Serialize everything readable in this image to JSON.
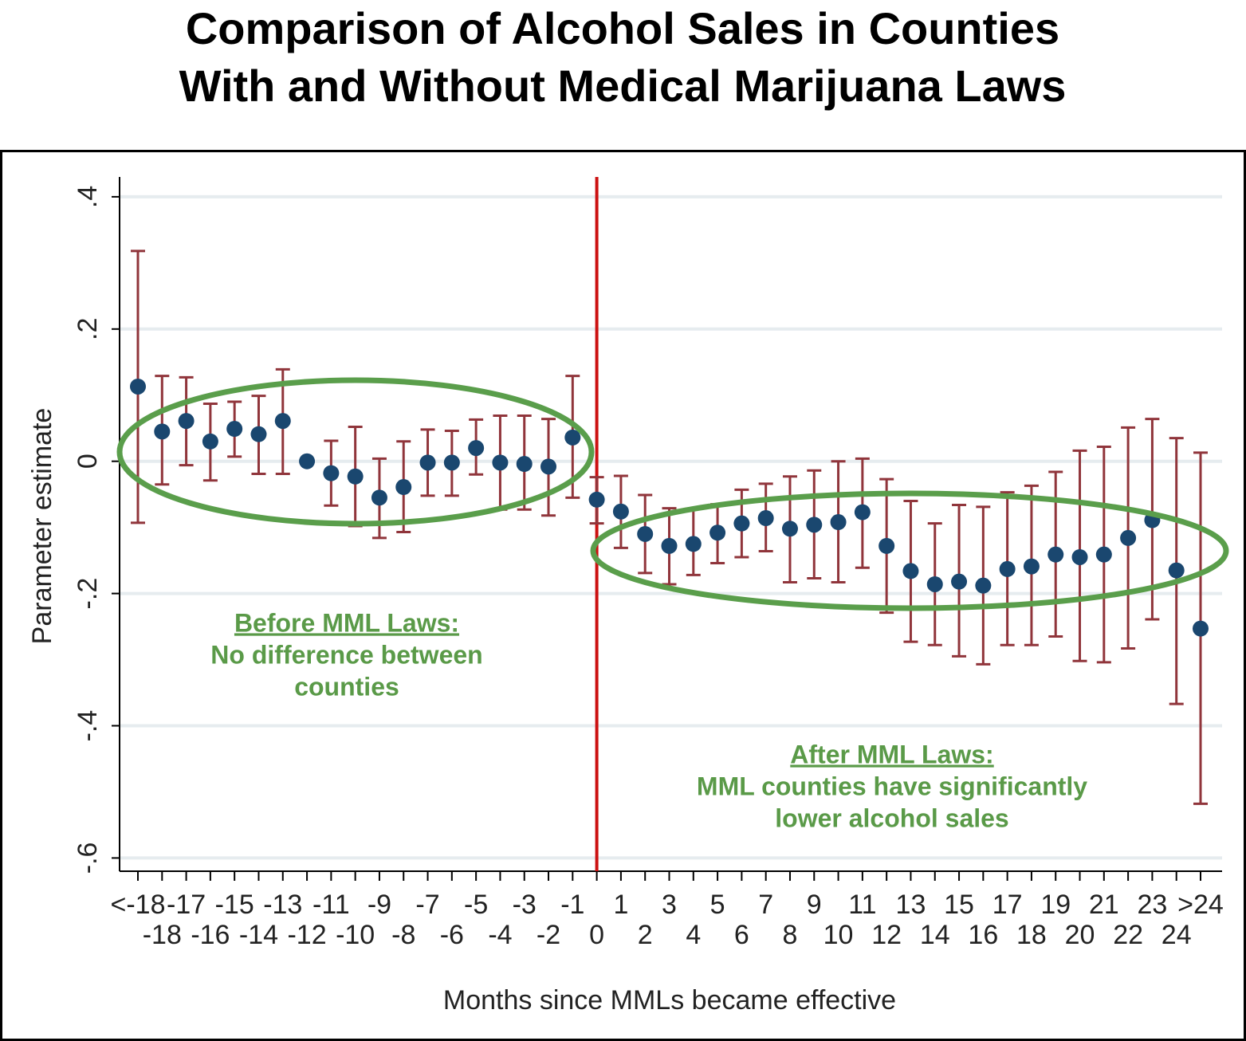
{
  "chart_data": {
    "type": "errorbar",
    "title": [
      "Comparison of Alcohol Sales in Counties",
      "With and Without Medical Marijuana Laws"
    ],
    "x_label": "Months since MMLs became effective",
    "y_label": "Parameter estimate",
    "categories": [
      "<-18",
      "-18",
      "-17",
      "-16",
      "-15",
      "-14",
      "-13",
      "-12",
      "-11",
      "-10",
      "-9",
      "-8",
      "-7",
      "-6",
      "-5",
      "-4",
      "-3",
      "-2",
      "-1",
      "0",
      "1",
      "2",
      "3",
      "4",
      "5",
      "6",
      "7",
      "8",
      "9",
      "10",
      "11",
      "12",
      "13",
      "14",
      "15",
      "16",
      "17",
      "18",
      "19",
      "20",
      "21",
      "22",
      "23",
      "24",
      ">24"
    ],
    "values": [
      0.113,
      0.045,
      0.061,
      0.03,
      0.049,
      0.041,
      0.061,
      0.0,
      -0.018,
      -0.023,
      -0.055,
      -0.039,
      -0.002,
      -0.002,
      0.02,
      -0.002,
      -0.004,
      -0.008,
      0.036,
      -0.058,
      -0.076,
      -0.11,
      -0.128,
      -0.125,
      -0.108,
      -0.094,
      -0.086,
      -0.102,
      -0.096,
      -0.092,
      -0.077,
      -0.128,
      -0.166,
      -0.186,
      -0.182,
      -0.188,
      -0.163,
      -0.159,
      -0.141,
      -0.145,
      -0.141,
      -0.116,
      -0.089,
      -0.165,
      -0.253
    ],
    "lower": [
      -0.093,
      -0.035,
      -0.006,
      -0.029,
      0.007,
      -0.019,
      -0.019,
      null,
      -0.067,
      -0.098,
      -0.116,
      -0.107,
      -0.052,
      -0.052,
      -0.02,
      -0.073,
      -0.073,
      -0.082,
      -0.055,
      -0.094,
      -0.131,
      -0.169,
      -0.186,
      -0.172,
      -0.154,
      -0.145,
      -0.136,
      -0.183,
      -0.177,
      -0.183,
      -0.161,
      -0.229,
      -0.273,
      -0.278,
      -0.295,
      -0.307,
      -0.278,
      -0.278,
      -0.265,
      -0.302,
      -0.304,
      -0.283,
      -0.239,
      -0.367,
      -0.518
    ],
    "upper": [
      0.318,
      0.129,
      0.127,
      0.087,
      0.09,
      0.099,
      0.139,
      null,
      0.031,
      0.052,
      0.004,
      0.03,
      0.048,
      0.046,
      0.063,
      0.069,
      0.069,
      0.064,
      0.129,
      -0.024,
      -0.022,
      -0.051,
      -0.071,
      -0.072,
      -0.065,
      -0.043,
      -0.034,
      -0.023,
      -0.014,
      0.0,
      0.004,
      -0.027,
      -0.06,
      -0.094,
      -0.066,
      -0.069,
      -0.047,
      -0.037,
      -0.016,
      0.016,
      0.022,
      0.051,
      0.064,
      0.035,
      0.013
    ],
    "color": "#1a476f",
    "error_color": "#90353b",
    "vline_at": "0",
    "vline_color": "#cc1111",
    "ylim": [
      -0.62,
      0.43
    ],
    "yticks": [
      {
        "value": -0.6,
        "label": "-.6"
      },
      {
        "value": -0.4,
        "label": "-.4"
      },
      {
        "value": -0.2,
        "label": "-.2"
      },
      0,
      {
        "value": 0.2,
        "label": ".2"
      },
      {
        "value": 0.4,
        "label": ".4"
      }
    ],
    "grid": true,
    "annotations": [
      {
        "title": "Before MML Laws:",
        "lines": [
          "No difference between",
          "counties"
        ]
      },
      {
        "title": "After MML Laws:",
        "lines": [
          "MML counties have significantly",
          "lower alcohol sales"
        ]
      }
    ],
    "annotation_color": "#5a9a48"
  }
}
